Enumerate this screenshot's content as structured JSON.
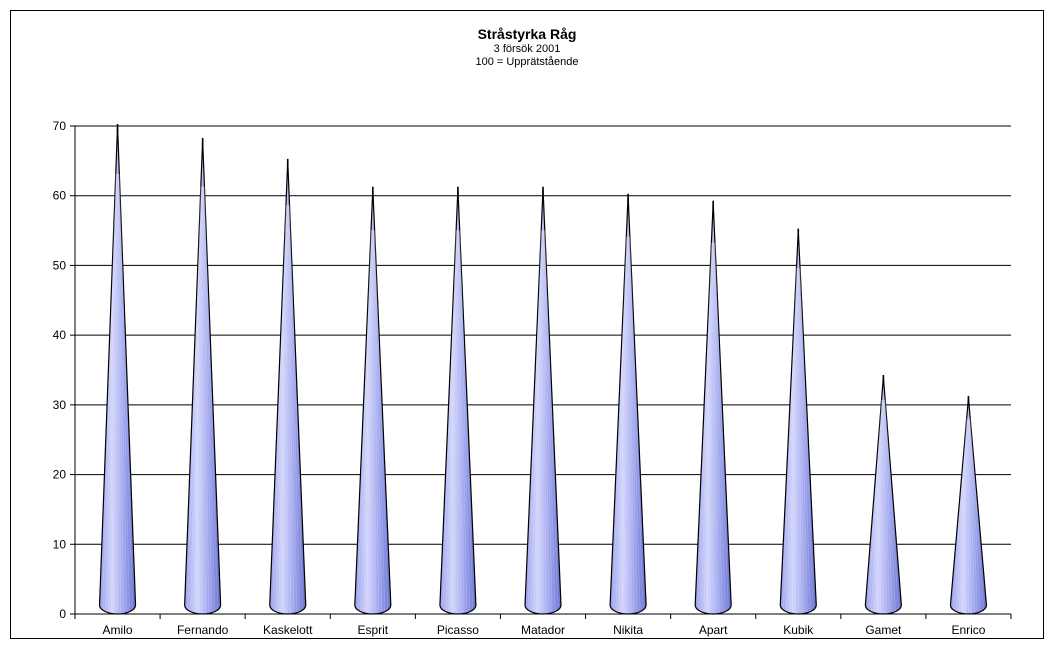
{
  "chart_data": {
    "type": "bar",
    "title": "Stråstyrka Råg",
    "subtitle_lines": [
      "3 försök 2001",
      "100 = Upprätstående"
    ],
    "categories": [
      "Amilo",
      "Fernando",
      "Kaskelott",
      "Esprit",
      "Picasso",
      "Matador",
      "Nikita",
      "Apart",
      "Kubik",
      "Gamet",
      "Enrico"
    ],
    "values": [
      70,
      68,
      65,
      61,
      61,
      61,
      60,
      59,
      55,
      34,
      31
    ],
    "ylim": [
      0,
      70
    ],
    "yticks": [
      0,
      10,
      20,
      30,
      40,
      50,
      60,
      70
    ],
    "grid": true,
    "bar_shape": "cone",
    "colors": {
      "cone_light": "#c9cdf8",
      "cone_mid": "#8f96e8",
      "cone_dark": "#5c64c8",
      "outline": "#000000"
    }
  }
}
